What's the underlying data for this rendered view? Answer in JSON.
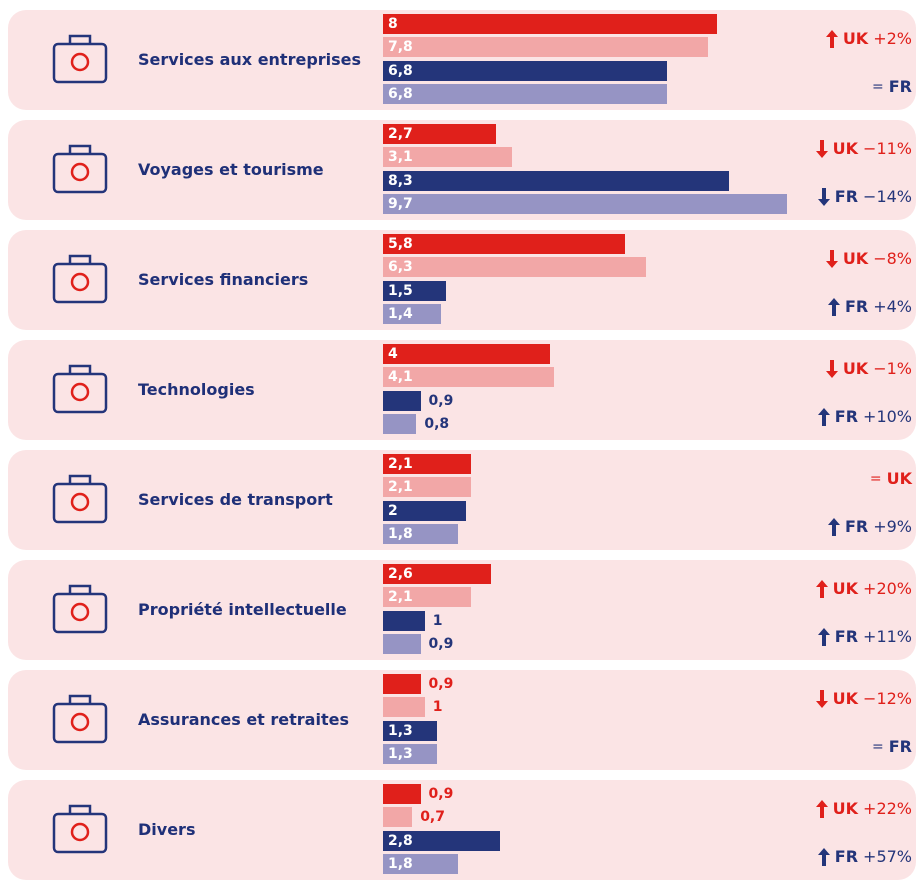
{
  "chart_data": {
    "type": "bar",
    "categories": [
      "Services aux entreprises",
      "Voyages et tourisme",
      "Services financiers",
      "Technologies",
      "Services de transport",
      "Propriété intellectuelle",
      "Assurances et retraites",
      "Divers"
    ],
    "series": [
      {
        "color": "#e0201b",
        "values": [
          8,
          2.7,
          5.8,
          4,
          2.1,
          2.6,
          0.9,
          0.9
        ],
        "value_labels": [
          "8",
          "2,7",
          "5,8",
          "4",
          "2,1",
          "2,6",
          "0,9",
          "0,9"
        ]
      },
      {
        "color": "#f2a7a7",
        "values": [
          7.8,
          3.1,
          6.3,
          4.1,
          2.1,
          2.1,
          1,
          0.7
        ],
        "value_labels": [
          "7,8",
          "3,1",
          "6,3",
          "4,1",
          "2,1",
          "2,1",
          "1",
          "0,7"
        ]
      },
      {
        "color": "#24357a",
        "values": [
          6.8,
          8.3,
          1.5,
          0.9,
          2,
          1,
          1.3,
          2.8
        ],
        "value_labels": [
          "6,8",
          "8,3",
          "1,5",
          "0,9",
          "2",
          "1",
          "1,3",
          "2,8"
        ]
      },
      {
        "color": "#9694c4",
        "values": [
          6.8,
          9.7,
          1.4,
          0.8,
          1.8,
          0.9,
          1.3,
          1.8
        ],
        "value_labels": [
          "6,8",
          "9,7",
          "1,4",
          "0,8",
          "1,8",
          "0,9",
          "1,3",
          "1,8"
        ]
      }
    ],
    "trends": [
      [
        {
          "label": "UK",
          "trend": "up",
          "change": "+2%"
        },
        {
          "label": "FR",
          "trend": "equal",
          "symbol": "="
        }
      ],
      [
        {
          "label": "UK",
          "trend": "down",
          "change": "−11%"
        },
        {
          "label": "FR",
          "trend": "down",
          "change": "−14%"
        }
      ],
      [
        {
          "label": "UK",
          "trend": "down",
          "change": "−8%"
        },
        {
          "label": "FR",
          "trend": "up",
          "change": "+4%"
        }
      ],
      [
        {
          "label": "UK",
          "trend": "down",
          "change": "−1%"
        },
        {
          "label": "FR",
          "trend": "up",
          "change": "+10%"
        }
      ],
      [
        {
          "label": "UK",
          "trend": "equal",
          "symbol": "="
        },
        {
          "label": "FR",
          "trend": "up",
          "change": "+9%"
        }
      ],
      [
        {
          "label": "UK",
          "trend": "up",
          "change": "+20%"
        },
        {
          "label": "FR",
          "trend": "up",
          "change": "+11%"
        }
      ],
      [
        {
          "label": "UK",
          "trend": "down",
          "change": "−12%"
        },
        {
          "label": "FR",
          "trend": "equal",
          "symbol": "="
        }
      ],
      [
        {
          "label": "UK",
          "trend": "up",
          "change": "+22%"
        },
        {
          "label": "FR",
          "trend": "up",
          "change": "+57%"
        }
      ]
    ]
  }
}
